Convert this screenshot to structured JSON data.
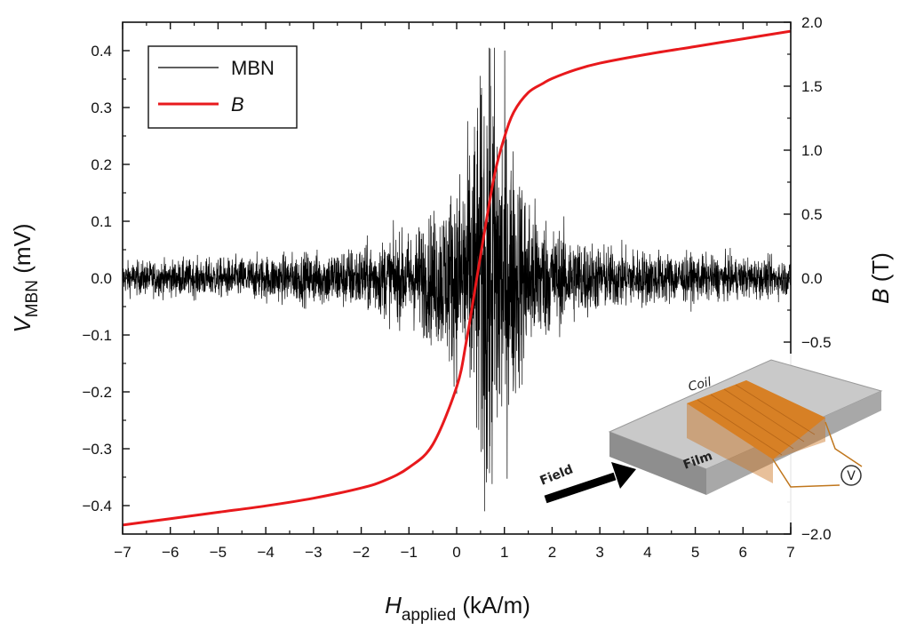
{
  "chart_data": {
    "type": "line",
    "x_axis": {
      "label_main": "H",
      "label_sub": "applied",
      "label_unit": " (kA/m)",
      "range": [
        -7,
        7
      ],
      "ticks": [
        -7,
        -6,
        -5,
        -4,
        -3,
        -2,
        -1,
        0,
        1,
        2,
        3,
        4,
        5,
        6,
        7
      ]
    },
    "y_left": {
      "label_main": "V",
      "label_sub": "MBN",
      "label_unit": " (mV)",
      "range": [
        -0.45,
        0.45
      ],
      "ticks": [
        -0.4,
        -0.3,
        -0.2,
        -0.1,
        0.0,
        0.1,
        0.2,
        0.3,
        0.4
      ],
      "tick_labels": [
        "−0.4",
        "−0.3",
        "−0.2",
        "−0.1",
        "0.0",
        "0.1",
        "0.2",
        "0.3",
        "0.4"
      ]
    },
    "y_right": {
      "label_main": "B",
      "label_unit": " (T)",
      "range": [
        -2.0,
        2.0
      ],
      "ticks": [
        -2.0,
        -0.5,
        0.0,
        0.5,
        1.0,
        1.5,
        2.0
      ],
      "tick_labels": [
        "−2.0",
        "−0.5",
        "0.0",
        "0.5",
        "1.0",
        "1.5",
        "2.0"
      ]
    },
    "series": [
      {
        "name": "MBN",
        "axis": "left",
        "color": "#000000",
        "kind": "noise-envelope",
        "envelope_x": [
          -7,
          -5,
          -3,
          -2,
          -1,
          -0.5,
          0,
          0.3,
          0.5,
          0.65,
          0.75,
          0.9,
          1.1,
          1.5,
          2,
          3,
          5,
          7
        ],
        "envelope_amp": [
          0.025,
          0.03,
          0.04,
          0.05,
          0.07,
          0.1,
          0.15,
          0.22,
          0.3,
          0.39,
          0.4,
          0.3,
          0.22,
          0.13,
          0.08,
          0.05,
          0.035,
          0.028
        ]
      },
      {
        "name": "B",
        "axis": "right",
        "color": "#e8191c",
        "x": [
          -7,
          -6,
          -5,
          -4,
          -3,
          -2,
          -1.5,
          -1,
          -0.5,
          0,
          0.2,
          0.4,
          0.6,
          0.8,
          1.0,
          1.2,
          1.5,
          1.8,
          2,
          2.5,
          3,
          4,
          5,
          6,
          7
        ],
        "y": [
          -1.93,
          -1.88,
          -1.83,
          -1.78,
          -1.72,
          -1.64,
          -1.58,
          -1.48,
          -1.3,
          -0.85,
          -0.5,
          -0.05,
          0.4,
          0.82,
          1.1,
          1.3,
          1.45,
          1.52,
          1.56,
          1.63,
          1.68,
          1.75,
          1.81,
          1.87,
          1.93
        ]
      }
    ],
    "legend": {
      "position": "top-left",
      "entries": [
        "MBN",
        "B"
      ]
    }
  },
  "inset": {
    "coil_label": "Coil",
    "film_label": "Film",
    "field_label": "Field",
    "meter_symbol": "V"
  }
}
